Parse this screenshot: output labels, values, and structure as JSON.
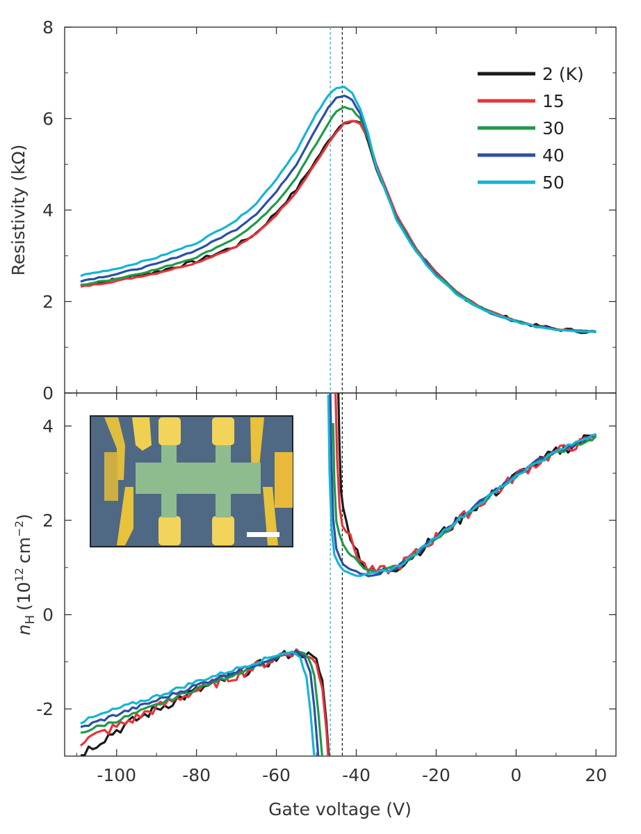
{
  "chart_data": [
    {
      "type": "line",
      "panel": "top",
      "xlabel": "Gate voltage (V)",
      "ylabel": "Resistivity (kΩ)",
      "xlim": [
        -113,
        25
      ],
      "ylim": [
        0,
        8
      ],
      "x_ticks": [
        -100,
        -80,
        -60,
        -40,
        -20,
        0,
        20
      ],
      "x_tick_labels": [
        "-100",
        "-80",
        "-60",
        "-40",
        "-20",
        "0",
        "20"
      ],
      "y_ticks": [
        0,
        2,
        4,
        6,
        8
      ],
      "y_tick_labels": [
        "0",
        "2",
        "4",
        "6",
        "8"
      ],
      "legend_position": "top-right",
      "dashed_verticals": [
        {
          "x": -46.5,
          "color": "#2cb5d6"
        },
        {
          "x": -43.5,
          "color": "#222222"
        }
      ],
      "series": [
        {
          "name": "2 (K)",
          "color": "#1a1a1a",
          "noisy": true,
          "x": [
            -109,
            -100,
            -90,
            -80,
            -70,
            -65,
            -60,
            -55,
            -50,
            -47,
            -45,
            -43,
            -41,
            -39,
            -37,
            -35,
            -30,
            -25,
            -20,
            -15,
            -10,
            -5,
            0,
            5,
            10,
            15,
            20
          ],
          "y": [
            2.35,
            2.48,
            2.65,
            2.88,
            3.22,
            3.5,
            3.95,
            4.45,
            5.1,
            5.5,
            5.75,
            5.93,
            5.95,
            5.9,
            5.5,
            4.9,
            3.85,
            3.15,
            2.6,
            2.2,
            1.92,
            1.72,
            1.58,
            1.47,
            1.4,
            1.36,
            1.33
          ]
        },
        {
          "name": "15",
          "color": "#e8333a",
          "noisy": false,
          "x": [
            -109,
            -100,
            -90,
            -80,
            -70,
            -65,
            -60,
            -55,
            -50,
            -47,
            -45,
            -43,
            -41,
            -39,
            -37,
            -35,
            -30,
            -25,
            -20,
            -15,
            -10,
            -5,
            0,
            5,
            10,
            15,
            20
          ],
          "y": [
            2.32,
            2.45,
            2.62,
            2.85,
            3.2,
            3.48,
            3.9,
            4.4,
            5.05,
            5.45,
            5.7,
            5.9,
            5.95,
            5.88,
            5.55,
            5.0,
            3.9,
            3.15,
            2.62,
            2.22,
            1.93,
            1.73,
            1.58,
            1.47,
            1.4,
            1.36,
            1.34
          ]
        },
        {
          "name": "30",
          "color": "#1e9a4b",
          "noisy": false,
          "x": [
            -109,
            -100,
            -90,
            -80,
            -70,
            -65,
            -60,
            -55,
            -50,
            -47,
            -45,
            -43,
            -41,
            -39,
            -37,
            -35,
            -30,
            -25,
            -20,
            -15,
            -10,
            -5,
            0,
            5,
            10,
            15,
            20
          ],
          "y": [
            2.36,
            2.5,
            2.7,
            2.97,
            3.4,
            3.72,
            4.15,
            4.72,
            5.45,
            5.9,
            6.15,
            6.25,
            6.2,
            6.0,
            5.55,
            4.95,
            3.85,
            3.12,
            2.6,
            2.2,
            1.92,
            1.72,
            1.57,
            1.46,
            1.39,
            1.36,
            1.34
          ]
        },
        {
          "name": "40",
          "color": "#2d4fa3",
          "noisy": false,
          "x": [
            -109,
            -100,
            -90,
            -80,
            -70,
            -65,
            -60,
            -55,
            -50,
            -47,
            -45,
            -43,
            -41,
            -39,
            -37,
            -35,
            -30,
            -25,
            -20,
            -15,
            -10,
            -5,
            0,
            5,
            10,
            15,
            20
          ],
          "y": [
            2.45,
            2.6,
            2.82,
            3.12,
            3.58,
            3.92,
            4.4,
            5.0,
            5.8,
            6.25,
            6.45,
            6.5,
            6.4,
            6.1,
            5.6,
            4.95,
            3.82,
            3.1,
            2.58,
            2.18,
            1.9,
            1.7,
            1.56,
            1.45,
            1.39,
            1.36,
            1.34
          ]
        },
        {
          "name": "50",
          "color": "#16b4d4",
          "noisy": false,
          "x": [
            -109,
            -100,
            -90,
            -80,
            -70,
            -65,
            -60,
            -55,
            -50,
            -47,
            -45,
            -43,
            -41,
            -39,
            -37,
            -35,
            -30,
            -25,
            -20,
            -15,
            -10,
            -5,
            0,
            5,
            10,
            15,
            20
          ],
          "y": [
            2.57,
            2.72,
            2.96,
            3.28,
            3.78,
            4.15,
            4.68,
            5.3,
            6.1,
            6.5,
            6.68,
            6.7,
            6.55,
            6.2,
            5.65,
            4.95,
            3.8,
            3.08,
            2.56,
            2.17,
            1.89,
            1.7,
            1.56,
            1.45,
            1.39,
            1.36,
            1.34
          ]
        }
      ]
    },
    {
      "type": "line",
      "panel": "bottom",
      "xlabel": "Gate voltage (V)",
      "ylabel_main": "n",
      "ylabel_sub": "H",
      "ylabel_rest": "(10",
      "ylabel_sup": "12",
      "ylabel_unit": "cm",
      "ylabel_unit_sup": "−2",
      "ylabel_close": ")",
      "xlim": [
        -113,
        25
      ],
      "ylim": [
        -3,
        4.7
      ],
      "x_ticks": [
        -100,
        -80,
        -60,
        -40,
        -20,
        0,
        20
      ],
      "x_tick_labels": [
        "-100",
        "-80",
        "-60",
        "-40",
        "-20",
        "0",
        "20"
      ],
      "y_ticks": [
        -2,
        0,
        2,
        4
      ],
      "y_tick_labels": [
        "-2",
        "0",
        "2",
        "4"
      ],
      "inset": "optical micrograph of Hall bar device with scale bar",
      "series": [
        {
          "name": "2 (K)",
          "color": "#1a1a1a",
          "noisy": true,
          "branches": [
            {
              "x": [
                -109,
                -100,
                -90,
                -80,
                -70,
                -60,
                -56,
                -53,
                -50,
                -48.5,
                -47.5,
                -46.8
              ],
              "y": [
                -2.95,
                -2.45,
                -2.0,
                -1.62,
                -1.28,
                -0.93,
                -0.8,
                -0.82,
                -1.0,
                -1.4,
                -2.3,
                -3.0
              ]
            },
            {
              "x": [
                -44.5,
                -44.2,
                -43.8,
                -43.3,
                -42.5,
                -41.5,
                -40.5,
                -39,
                -37,
                -35,
                -30,
                -25,
                -20,
                -15,
                -10,
                -5,
                0,
                5,
                10,
                15,
                20
              ],
              "y": [
                4.7,
                3.6,
                2.7,
                2.2,
                1.95,
                1.7,
                1.5,
                1.2,
                0.95,
                0.88,
                1.0,
                1.3,
                1.65,
                1.95,
                2.3,
                2.6,
                2.95,
                3.2,
                3.45,
                3.6,
                3.9
              ]
            }
          ]
        },
        {
          "name": "15",
          "color": "#e8333a",
          "noisy": true,
          "branches": [
            {
              "x": [
                -109,
                -100,
                -90,
                -80,
                -70,
                -60,
                -56,
                -53,
                -50,
                -48.5,
                -47.5,
                -47.0
              ],
              "y": [
                -2.7,
                -2.38,
                -1.98,
                -1.6,
                -1.28,
                -0.92,
                -0.78,
                -0.83,
                -1.05,
                -1.5,
                -2.4,
                -3.0
              ]
            },
            {
              "x": [
                -45.2,
                -44.8,
                -44.2,
                -43.5,
                -42.5,
                -41.5,
                -40.5,
                -39,
                -37,
                -35,
                -30,
                -25,
                -20,
                -15,
                -10,
                -5,
                0,
                5,
                10,
                15,
                20
              ],
              "y": [
                4.7,
                3.4,
                2.4,
                1.95,
                1.8,
                1.6,
                1.4,
                1.15,
                0.95,
                0.9,
                1.0,
                1.3,
                1.65,
                1.95,
                2.3,
                2.6,
                2.95,
                3.2,
                3.45,
                3.6,
                3.75
              ]
            }
          ]
        },
        {
          "name": "30",
          "color": "#1e9a4b",
          "noisy": false,
          "branches": [
            {
              "x": [
                -109,
                -100,
                -90,
                -80,
                -70,
                -62,
                -57,
                -54,
                -52,
                -50.5,
                -49.5,
                -48.5
              ],
              "y": [
                -2.5,
                -2.25,
                -1.92,
                -1.57,
                -1.25,
                -0.98,
                -0.82,
                -0.8,
                -0.92,
                -1.3,
                -2.1,
                -3.0
              ]
            },
            {
              "x": [
                -45.8,
                -45.5,
                -45.0,
                -44.3,
                -43.3,
                -42.0,
                -40.5,
                -39,
                -37,
                -35,
                -30,
                -25,
                -20,
                -15,
                -10,
                -5,
                0,
                5,
                10,
                15,
                20
              ],
              "y": [
                4.1,
                2.8,
                2.0,
                1.7,
                1.52,
                1.35,
                1.2,
                1.05,
                0.92,
                0.9,
                1.0,
                1.3,
                1.62,
                1.95,
                2.3,
                2.62,
                2.95,
                3.22,
                3.42,
                3.6,
                3.75
              ]
            }
          ]
        },
        {
          "name": "40",
          "color": "#2d4fa3",
          "noisy": false,
          "branches": [
            {
              "x": [
                -109,
                -100,
                -90,
                -80,
                -70,
                -62,
                -58,
                -55,
                -53,
                -51.5,
                -50.5,
                -49.5
              ],
              "y": [
                -2.4,
                -2.12,
                -1.82,
                -1.5,
                -1.2,
                -0.96,
                -0.82,
                -0.8,
                -0.9,
                -1.25,
                -2.0,
                -3.0
              ]
            },
            {
              "x": [
                -46.5,
                -46.2,
                -45.8,
                -45.0,
                -44.0,
                -42.5,
                -41.0,
                -39,
                -37,
                -35,
                -30,
                -25,
                -20,
                -15,
                -10,
                -5,
                0,
                5,
                10,
                15,
                20
              ],
              "y": [
                4.7,
                3.2,
                2.0,
                1.4,
                1.15,
                1.0,
                0.93,
                0.87,
                0.85,
                0.87,
                1.0,
                1.3,
                1.65,
                1.98,
                2.32,
                2.65,
                2.95,
                3.25,
                3.45,
                3.62,
                3.85
              ]
            }
          ]
        },
        {
          "name": "50",
          "color": "#16b4d4",
          "noisy": false,
          "branches": [
            {
              "x": [
                -109,
                -100,
                -90,
                -80,
                -70,
                -63,
                -59,
                -56,
                -54,
                -52.5,
                -51.5,
                -50.5
              ],
              "y": [
                -2.28,
                -2.0,
                -1.73,
                -1.42,
                -1.15,
                -0.95,
                -0.82,
                -0.8,
                -0.92,
                -1.3,
                -2.05,
                -3.0
              ]
            },
            {
              "x": [
                -47.0,
                -46.7,
                -46.2,
                -45.5,
                -44.5,
                -43.0,
                -41.5,
                -40,
                -38,
                -36,
                -30,
                -25,
                -20,
                -15,
                -10,
                -5,
                0,
                5,
                10,
                15,
                20
              ],
              "y": [
                4.7,
                3.0,
                1.8,
                1.3,
                1.08,
                0.96,
                0.9,
                0.85,
                0.82,
                0.85,
                1.0,
                1.3,
                1.65,
                1.98,
                2.3,
                2.62,
                2.95,
                3.22,
                3.45,
                3.65,
                3.85
              ]
            }
          ]
        }
      ]
    }
  ]
}
